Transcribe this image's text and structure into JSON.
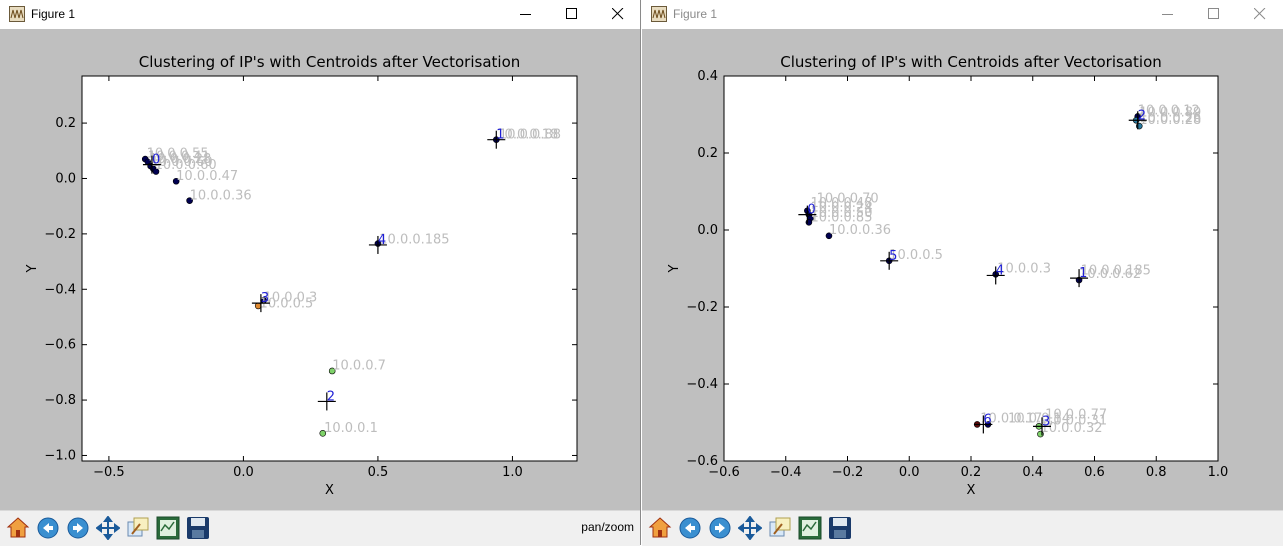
{
  "windows": [
    {
      "id": "left",
      "title": "Figure 1",
      "status": "pan/zoom",
      "plot": {
        "title": "Clustering of IP's with Centroids after Vectorisation",
        "xlabel": "X",
        "ylabel": "Y",
        "xlim": [
          -0.6,
          1.24
        ],
        "ylim": [
          -1.02,
          0.37
        ],
        "xticks": [
          -0.5,
          0.0,
          0.5,
          1.0
        ],
        "xtick_labels": [
          "−0.5",
          "0.0",
          "0.5",
          "1.0"
        ],
        "yticks": [
          0.2,
          0.0,
          -0.2,
          -0.4,
          -0.6,
          -0.8,
          -1.0
        ],
        "ytick_labels": [
          "0.2",
          "0.0",
          "−0.2",
          "−0.4",
          "−0.6",
          "−0.8",
          "−1.0"
        ],
        "points": [
          {
            "x": -0.365,
            "y": 0.07,
            "color": "#000050"
          },
          {
            "x": -0.355,
            "y": 0.06,
            "color": "#000050"
          },
          {
            "x": -0.345,
            "y": 0.045,
            "color": "#000050"
          },
          {
            "x": -0.335,
            "y": 0.035,
            "color": "#000050"
          },
          {
            "x": -0.325,
            "y": 0.025,
            "color": "#000050"
          },
          {
            "x": -0.25,
            "y": -0.01,
            "color": "#000050"
          },
          {
            "x": -0.2,
            "y": -0.08,
            "color": "#000050"
          },
          {
            "x": 0.94,
            "y": 0.14,
            "color": "#000050"
          },
          {
            "x": 0.5,
            "y": -0.235,
            "color": "#000050"
          },
          {
            "x": 0.055,
            "y": -0.46,
            "color": "#e08a30"
          },
          {
            "x": 0.075,
            "y": -0.44,
            "color": "#000050"
          },
          {
            "x": 0.33,
            "y": -0.695,
            "color": "#7fd26a"
          },
          {
            "x": 0.295,
            "y": -0.92,
            "color": "#7fd26a"
          }
        ],
        "centroids": [
          {
            "x": -0.34,
            "y": 0.05,
            "label": "0"
          },
          {
            "x": 0.94,
            "y": 0.14,
            "label": "1"
          },
          {
            "x": 0.31,
            "y": -0.805,
            "label": "2"
          },
          {
            "x": 0.065,
            "y": -0.45,
            "label": "3"
          },
          {
            "x": 0.5,
            "y": -0.24,
            "label": "4"
          }
        ],
        "annotations": [
          {
            "x": -0.36,
            "y": 0.075,
            "text": "10.0.0.55"
          },
          {
            "x": -0.355,
            "y": 0.065,
            "text": "10.0.0.41"
          },
          {
            "x": -0.35,
            "y": 0.055,
            "text": "10.0.0.28"
          },
          {
            "x": -0.345,
            "y": 0.045,
            "text": "10.0.0.60"
          },
          {
            "x": -0.33,
            "y": 0.035,
            "text": "10.0.0.60"
          },
          {
            "x": -0.25,
            "y": -0.005,
            "text": "10.0.0.47"
          },
          {
            "x": -0.2,
            "y": -0.075,
            "text": "10.0.0.36"
          },
          {
            "x": 0.94,
            "y": 0.145,
            "text": "10.0.0.18"
          },
          {
            "x": 0.95,
            "y": 0.145,
            "text": "10.0.0.88"
          },
          {
            "x": 0.505,
            "y": -0.235,
            "text": "10.0.0.185"
          },
          {
            "x": 0.075,
            "y": -0.445,
            "text": "10.0.0.3"
          },
          {
            "x": 0.06,
            "y": -0.465,
            "text": "10.0.0.5"
          },
          {
            "x": 0.33,
            "y": -0.69,
            "text": "10.0.0.7"
          },
          {
            "x": 0.3,
            "y": -0.915,
            "text": "10.0.0.1"
          }
        ]
      }
    },
    {
      "id": "right",
      "title": "Figure 1",
      "status": "",
      "plot": {
        "title": "Clustering of IP's with Centroids after Vectorisation",
        "xlabel": "X",
        "ylabel": "Y",
        "xlim": [
          -0.6,
          1.0
        ],
        "ylim": [
          -0.6,
          0.4
        ],
        "xticks": [
          -0.6,
          -0.4,
          -0.2,
          0.0,
          0.2,
          0.4,
          0.6,
          0.8,
          1.0
        ],
        "xtick_labels": [
          "−0.6",
          "−0.4",
          "−0.2",
          "0.0",
          "0.2",
          "0.4",
          "0.6",
          "0.8",
          "1.0"
        ],
        "yticks": [
          0.4,
          0.2,
          0.0,
          -0.2,
          -0.4,
          -0.6
        ],
        "ytick_labels": [
          "0.4",
          "0.2",
          "0.0",
          "−0.2",
          "−0.4",
          "−0.6"
        ],
        "points": [
          {
            "x": -0.33,
            "y": 0.05,
            "color": "#000050"
          },
          {
            "x": -0.325,
            "y": 0.04,
            "color": "#000050"
          },
          {
            "x": -0.32,
            "y": 0.03,
            "color": "#000050"
          },
          {
            "x": -0.325,
            "y": 0.02,
            "color": "#000050"
          },
          {
            "x": -0.26,
            "y": -0.015,
            "color": "#000050"
          },
          {
            "x": 0.74,
            "y": 0.295,
            "color": "#000050"
          },
          {
            "x": 0.735,
            "y": 0.285,
            "color": "#2a7aa0"
          },
          {
            "x": 0.745,
            "y": 0.27,
            "color": "#2a7aa0"
          },
          {
            "x": -0.065,
            "y": -0.08,
            "color": "#000050"
          },
          {
            "x": 0.28,
            "y": -0.115,
            "color": "#000050"
          },
          {
            "x": 0.55,
            "y": -0.13,
            "color": "#000050"
          },
          {
            "x": 0.22,
            "y": -0.505,
            "color": "#5a0a0a"
          },
          {
            "x": 0.255,
            "y": -0.505,
            "color": "#000050"
          },
          {
            "x": 0.42,
            "y": -0.51,
            "color": "#7fd26a"
          },
          {
            "x": 0.425,
            "y": -0.53,
            "color": "#7fd26a"
          }
        ],
        "centroids": [
          {
            "x": -0.33,
            "y": 0.04,
            "label": "0"
          },
          {
            "x": 0.55,
            "y": -0.125,
            "label": "1"
          },
          {
            "x": 0.74,
            "y": 0.285,
            "label": "2"
          },
          {
            "x": 0.43,
            "y": -0.51,
            "label": "3"
          },
          {
            "x": 0.28,
            "y": -0.118,
            "label": "4"
          },
          {
            "x": -0.065,
            "y": -0.08,
            "label": "5"
          },
          {
            "x": 0.24,
            "y": -0.505,
            "label": "6"
          }
        ],
        "annotations": [
          {
            "x": -0.3,
            "y": 0.072,
            "text": "10.0.0.70"
          },
          {
            "x": -0.32,
            "y": 0.06,
            "text": "10.0.0.48"
          },
          {
            "x": -0.32,
            "y": 0.048,
            "text": "10.0.0.24"
          },
          {
            "x": -0.32,
            "y": 0.034,
            "text": "10.0.0.50"
          },
          {
            "x": -0.32,
            "y": 0.022,
            "text": "10.0.0.85"
          },
          {
            "x": -0.26,
            "y": -0.01,
            "text": "10.0.0.36"
          },
          {
            "x": 0.74,
            "y": 0.3,
            "text": "10.0.0.12"
          },
          {
            "x": 0.745,
            "y": 0.295,
            "text": "10.0.0.89"
          },
          {
            "x": 0.745,
            "y": 0.28,
            "text": "10.0.0.26"
          },
          {
            "x": 0.745,
            "y": 0.275,
            "text": "10.0.0.28"
          },
          {
            "x": -0.065,
            "y": -0.075,
            "text": "10.0.0.5"
          },
          {
            "x": 0.285,
            "y": -0.11,
            "text": "10.0.0.3"
          },
          {
            "x": 0.555,
            "y": -0.115,
            "text": "10.0.0.185"
          },
          {
            "x": 0.55,
            "y": -0.125,
            "text": "10.0.0.62"
          },
          {
            "x": 0.44,
            "y": -0.49,
            "text": "10.0.0.77"
          },
          {
            "x": 0.44,
            "y": -0.505,
            "text": "10.0.0.31"
          },
          {
            "x": 0.425,
            "y": -0.525,
            "text": "10.0.0.32"
          },
          {
            "x": 0.23,
            "y": -0.5,
            "text": "10.0.0.17"
          },
          {
            "x": 0.32,
            "y": -0.5,
            "text": "10.0.0.14"
          }
        ]
      }
    }
  ],
  "toolbar_icons": [
    "home-icon",
    "back-icon",
    "forward-icon",
    "pan-icon",
    "zoom-icon",
    "subplots-icon",
    "save-icon"
  ]
}
